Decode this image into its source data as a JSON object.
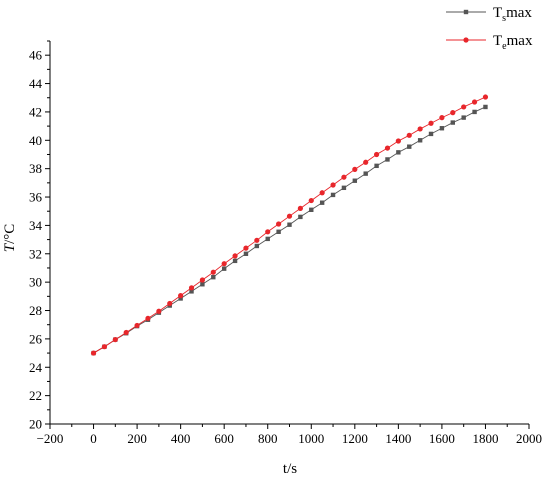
{
  "chart_data": {
    "type": "line",
    "xlabel": "t/s",
    "ylabel_main": "T",
    "ylabel_unit": "/°C",
    "xlim": [
      -200,
      2000
    ],
    "ylim": [
      20,
      47
    ],
    "x_ticks": [
      -200,
      0,
      200,
      400,
      600,
      800,
      1000,
      1200,
      1400,
      1600,
      1800,
      2000
    ],
    "y_ticks": [
      20,
      22,
      24,
      26,
      28,
      30,
      32,
      34,
      36,
      38,
      40,
      42,
      44,
      46
    ],
    "legend_placement": "top-right",
    "x": [
      0,
      50,
      100,
      150,
      200,
      250,
      300,
      350,
      400,
      450,
      500,
      550,
      600,
      650,
      700,
      750,
      800,
      850,
      900,
      950,
      1000,
      1050,
      1100,
      1150,
      1200,
      1250,
      1300,
      1350,
      1400,
      1450,
      1500,
      1550,
      1600,
      1650,
      1700,
      1750,
      1800
    ],
    "series": [
      {
        "name_base": "T",
        "name_sub": "s",
        "name_suffix": "max",
        "marker": "square",
        "color": "#555555",
        "values": [
          25.0,
          25.45,
          25.95,
          26.4,
          26.9,
          27.35,
          27.85,
          28.35,
          28.85,
          29.35,
          29.85,
          30.35,
          30.95,
          31.5,
          32.0,
          32.55,
          33.05,
          33.55,
          34.05,
          34.6,
          35.1,
          35.6,
          36.15,
          36.65,
          37.15,
          37.65,
          38.2,
          38.65,
          39.15,
          39.55,
          40.0,
          40.45,
          40.85,
          41.25,
          41.6,
          42.0,
          42.35
        ]
      },
      {
        "name_base": "T",
        "name_sub": "e",
        "name_suffix": "max",
        "marker": "circle",
        "color": "#e8262b",
        "values": [
          25.0,
          25.45,
          25.95,
          26.45,
          26.95,
          27.45,
          27.95,
          28.5,
          29.05,
          29.6,
          30.15,
          30.7,
          31.3,
          31.85,
          32.4,
          32.95,
          33.55,
          34.1,
          34.65,
          35.2,
          35.75,
          36.3,
          36.85,
          37.4,
          37.95,
          38.45,
          39.0,
          39.45,
          39.95,
          40.35,
          40.8,
          41.2,
          41.6,
          41.95,
          42.35,
          42.7,
          43.05
        ]
      }
    ]
  }
}
